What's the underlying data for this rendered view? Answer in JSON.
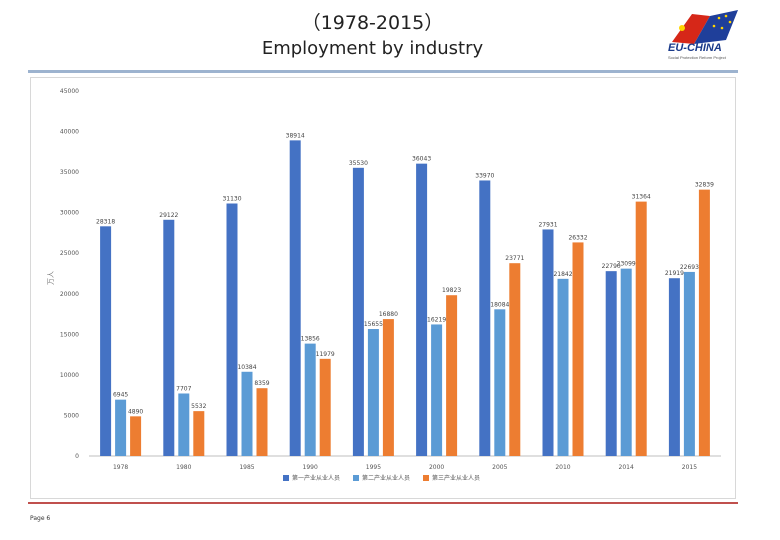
{
  "header": {
    "title_line1": "（1978-2015）",
    "title_line2": "Employment by industry",
    "logo_text": "EU-CHINA",
    "logo_subtext": "Social Protection Reform Project"
  },
  "footer": {
    "page_label": "Page 6"
  },
  "colors": {
    "primary": "#4472c4",
    "secondary": "#5b9bd5",
    "tertiary": "#ed7d31",
    "accent_line": "#9db3cf",
    "footer_line": "#c0504d"
  },
  "chart_data": {
    "type": "bar",
    "title": "",
    "xlabel": "",
    "ylabel": "万人",
    "ylim": [
      0,
      45000
    ],
    "yticks": [
      0,
      5000,
      10000,
      15000,
      20000,
      25000,
      30000,
      35000,
      40000,
      45000
    ],
    "categories": [
      "1978",
      "1980",
      "1985",
      "1990",
      "1995",
      "2000",
      "2005",
      "2010",
      "2014",
      "2015"
    ],
    "series": [
      {
        "name": "第一产业从业人员",
        "color": "#4472c4",
        "values": [
          28318,
          29122,
          31130,
          38914,
          35530,
          36043,
          33970,
          27931,
          22790,
          21919
        ]
      },
      {
        "name": "第二产业从业人员",
        "color": "#5b9bd5",
        "values": [
          6945,
          7707,
          10384,
          13856,
          15655,
          16219,
          18084,
          21842,
          23099,
          22693
        ]
      },
      {
        "name": "第三产业从业人员",
        "color": "#ed7d31",
        "values": [
          4890,
          5532,
          8359,
          11979,
          16880,
          19823,
          23771,
          26332,
          31364,
          32839
        ]
      }
    ],
    "legend_position": "bottom",
    "grid": false
  }
}
